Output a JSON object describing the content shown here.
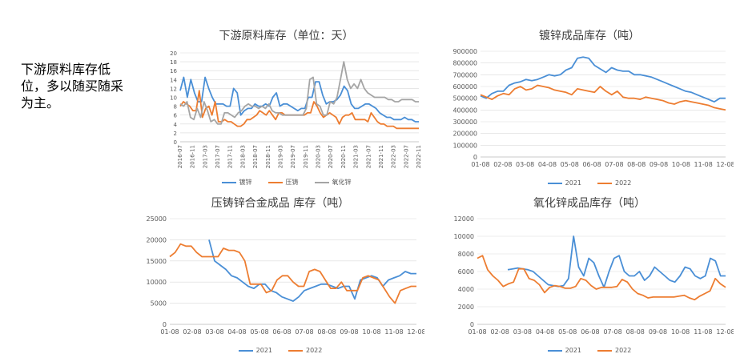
{
  "note": "下游原料库存低位，多以随买随采为主。",
  "chart_data": [
    {
      "id": "c1",
      "type": "line",
      "title": "下游原料库存（单位：天）",
      "ylim": [
        0,
        20
      ],
      "yticks": [
        0,
        2,
        4,
        6,
        8,
        10,
        12,
        14,
        16,
        18,
        20
      ],
      "xticklabels": [
        "2016-07",
        "2016-11",
        "2017-03",
        "2017-07",
        "2017-11",
        "2018-03",
        "2018-07",
        "2018-11",
        "2019-03",
        "2019-07",
        "2019-11",
        "2020-03",
        "2020-07",
        "2020-11",
        "2021-03",
        "2021-07",
        "2021-11",
        "2022-03",
        "2022-07",
        "2022-11"
      ],
      "legend": "bottom",
      "series": [
        {
          "name": "镀锌",
          "color": "#4a8fd6",
          "values": [
            11.5,
            14.5,
            10,
            14,
            11,
            9,
            9,
            14.5,
            12,
            10,
            8.5,
            8.5,
            8.5,
            8,
            8,
            12,
            11,
            6,
            7,
            7.5,
            7.5,
            8.5,
            8,
            8,
            8.5,
            8,
            10,
            11,
            8,
            8.5,
            8.5,
            8,
            7.5,
            7,
            7.5,
            7.5,
            10,
            10,
            13.5,
            13.5,
            10.5,
            8.5,
            9,
            9,
            9.5,
            10.5,
            12.5,
            11.5,
            8.5,
            7.5,
            7.5,
            8,
            8.5,
            8.5,
            8,
            7.5,
            6.5,
            6,
            5.5,
            5.5,
            5,
            5,
            5,
            5.5,
            5,
            5,
            4.5,
            4.5
          ]
        },
        {
          "name": "压铸",
          "color": "#ed7d31",
          "values": [
            8,
            9,
            8.5,
            8,
            7,
            7,
            11.5,
            5.5,
            7.5,
            8,
            6,
            9,
            4.5,
            4.5,
            5,
            4.5,
            4.5,
            4,
            3.5,
            3.5,
            4,
            5,
            5,
            5.5,
            6,
            7,
            6.5,
            6,
            7,
            6,
            5,
            6.5,
            6.5,
            6,
            6,
            6,
            6,
            6,
            6,
            6,
            6.5,
            6.5,
            9,
            8,
            6.5,
            5.5,
            6,
            6.5,
            6,
            5.5,
            4,
            5.5,
            6,
            6,
            6.5,
            5,
            5,
            5,
            5,
            4.5,
            6.5,
            5.5,
            4.5,
            4,
            4,
            3.5,
            3.5,
            3.5,
            3,
            3,
            3,
            3,
            3,
            3,
            3,
            3
          ]
        },
        {
          "name": "氧化锌",
          "color": "#a5a5a5",
          "values": [
            8.5,
            8,
            9,
            5.5,
            5,
            7.5,
            5.5,
            9,
            7,
            4.5,
            5,
            4,
            4,
            6.5,
            6.5,
            6,
            5.5,
            6.5,
            7,
            8,
            8.5,
            8,
            8,
            7.5,
            8,
            7.5,
            8.5,
            7,
            6.5,
            6.5,
            6,
            6,
            6,
            6,
            6,
            6,
            6,
            7.5,
            14,
            14.5,
            8.5,
            8,
            6,
            6,
            9,
            8.5,
            10,
            14,
            18,
            14,
            12,
            13,
            12,
            14,
            12,
            11,
            10.5,
            10,
            10,
            10,
            10,
            9.5,
            9.5,
            9,
            9,
            9.5,
            9.5,
            9.5,
            9.5,
            9,
            9
          ]
        }
      ]
    },
    {
      "id": "c2",
      "type": "line",
      "title": "镀锌成品库存（吨）",
      "ylim": [
        0,
        900000
      ],
      "yticks": [
        0,
        100000,
        200000,
        300000,
        400000,
        500000,
        600000,
        700000,
        800000,
        900000
      ],
      "xticklabels": [
        "01-08",
        "02-08",
        "03-08",
        "04-08",
        "05-08",
        "06-08",
        "07-08",
        "08-08",
        "09-08",
        "10-08",
        "11-08",
        "12-08"
      ],
      "legend": "bottom",
      "series": [
        {
          "name": "2021",
          "color": "#4a8fd6",
          "values": [
            520000,
            500000,
            540000,
            560000,
            560000,
            610000,
            630000,
            640000,
            660000,
            650000,
            660000,
            680000,
            700000,
            690000,
            700000,
            740000,
            760000,
            840000,
            850000,
            840000,
            780000,
            750000,
            720000,
            760000,
            740000,
            730000,
            730000,
            700000,
            700000,
            690000,
            680000,
            660000,
            640000,
            620000,
            600000,
            580000,
            560000,
            550000,
            530000,
            510000,
            490000,
            470000,
            500000,
            500000
          ]
        },
        {
          "name": "2022",
          "color": "#ed7d31",
          "values": [
            530000,
            510000,
            490000,
            520000,
            540000,
            530000,
            580000,
            600000,
            570000,
            580000,
            610000,
            600000,
            590000,
            570000,
            560000,
            550000,
            530000,
            580000,
            570000,
            560000,
            550000,
            600000,
            560000,
            530000,
            560000,
            510000,
            500000,
            500000,
            490000,
            510000,
            500000,
            490000,
            480000,
            460000,
            450000,
            470000,
            480000,
            470000,
            460000,
            450000,
            440000,
            420000,
            410000,
            400000
          ]
        }
      ]
    },
    {
      "id": "c3",
      "type": "line",
      "title": "压铸锌合金成品 库存（吨）",
      "ylim": [
        0,
        25000
      ],
      "yticks": [
        0,
        5000,
        10000,
        15000,
        20000,
        25000
      ],
      "xticklabels": [
        "01-08",
        "02-08",
        "03-08",
        "04-08",
        "05-08",
        "06-08",
        "07-08",
        "08-08",
        "09-08",
        "10-08",
        "11-08",
        "12-08"
      ],
      "legend": "bottom",
      "series": [
        {
          "name": "2021",
          "color": "#4a8fd6",
          "values": [
            null,
            null,
            null,
            null,
            null,
            null,
            null,
            20000,
            15000,
            14000,
            13000,
            11500,
            11000,
            10000,
            9000,
            8500,
            9500,
            9500,
            8000,
            7500,
            6500,
            6000,
            5500,
            6500,
            8000,
            8500,
            9000,
            9500,
            9500,
            9000,
            8500,
            9000,
            9000,
            6000,
            10500,
            11000,
            11500,
            11000,
            9000,
            10500,
            11000,
            11500,
            12500,
            12000,
            12000
          ]
        },
        {
          "name": "2022",
          "color": "#ed7d31",
          "values": [
            16000,
            17000,
            19000,
            18500,
            18500,
            17000,
            16000,
            16000,
            16000,
            16000,
            18000,
            17500,
            17500,
            17000,
            15000,
            9500,
            9500,
            9500,
            7500,
            8000,
            10500,
            11500,
            11500,
            10000,
            9000,
            9000,
            12500,
            13000,
            12500,
            10500,
            8500,
            8500,
            10000,
            8000,
            8000,
            8000,
            11000,
            11500,
            11000,
            10500,
            8500,
            6500,
            5000,
            8000,
            8500,
            9000,
            9000
          ]
        }
      ]
    },
    {
      "id": "c4",
      "type": "line",
      "title": "氧化锌成品库存（吨）",
      "ylim": [
        0,
        12000
      ],
      "yticks": [
        0,
        2000,
        4000,
        6000,
        8000,
        10000,
        12000
      ],
      "xticklabels": [
        "01-08",
        "02-08",
        "03-08",
        "04-08",
        "05-08",
        "06-08",
        "07-08",
        "08-08",
        "09-08",
        "10-08",
        "11-08",
        "12-08"
      ],
      "legend": "bottom",
      "series": [
        {
          "name": "2021",
          "color": "#4a8fd6",
          "values": [
            null,
            null,
            null,
            null,
            null,
            null,
            6200,
            6300,
            6400,
            6300,
            6200,
            6000,
            5500,
            5000,
            4500,
            4400,
            4300,
            4400,
            5200,
            10000,
            6500,
            5500,
            7500,
            7000,
            5500,
            4200,
            6000,
            7500,
            7800,
            6000,
            5500,
            5500,
            6000,
            5000,
            5500,
            6500,
            6000,
            5500,
            5000,
            4800,
            5500,
            6500,
            6300,
            5500,
            5200,
            5500,
            7500,
            7200,
            5500,
            5500
          ]
        },
        {
          "name": "2022",
          "color": "#ed7d31",
          "values": [
            7500,
            7800,
            6200,
            5500,
            5000,
            4300,
            4600,
            4800,
            6300,
            6300,
            5200,
            5000,
            4500,
            3600,
            4200,
            4400,
            4300,
            4100,
            4100,
            4300,
            5200,
            5000,
            4400,
            4000,
            4200,
            4200,
            4200,
            4300,
            5100,
            4800,
            4000,
            3500,
            3300,
            3000,
            3100,
            3100,
            3100,
            3100,
            3100,
            3200,
            3300,
            3000,
            2800,
            3200,
            3500,
            3800,
            5200,
            4600,
            4200
          ]
        }
      ]
    }
  ]
}
